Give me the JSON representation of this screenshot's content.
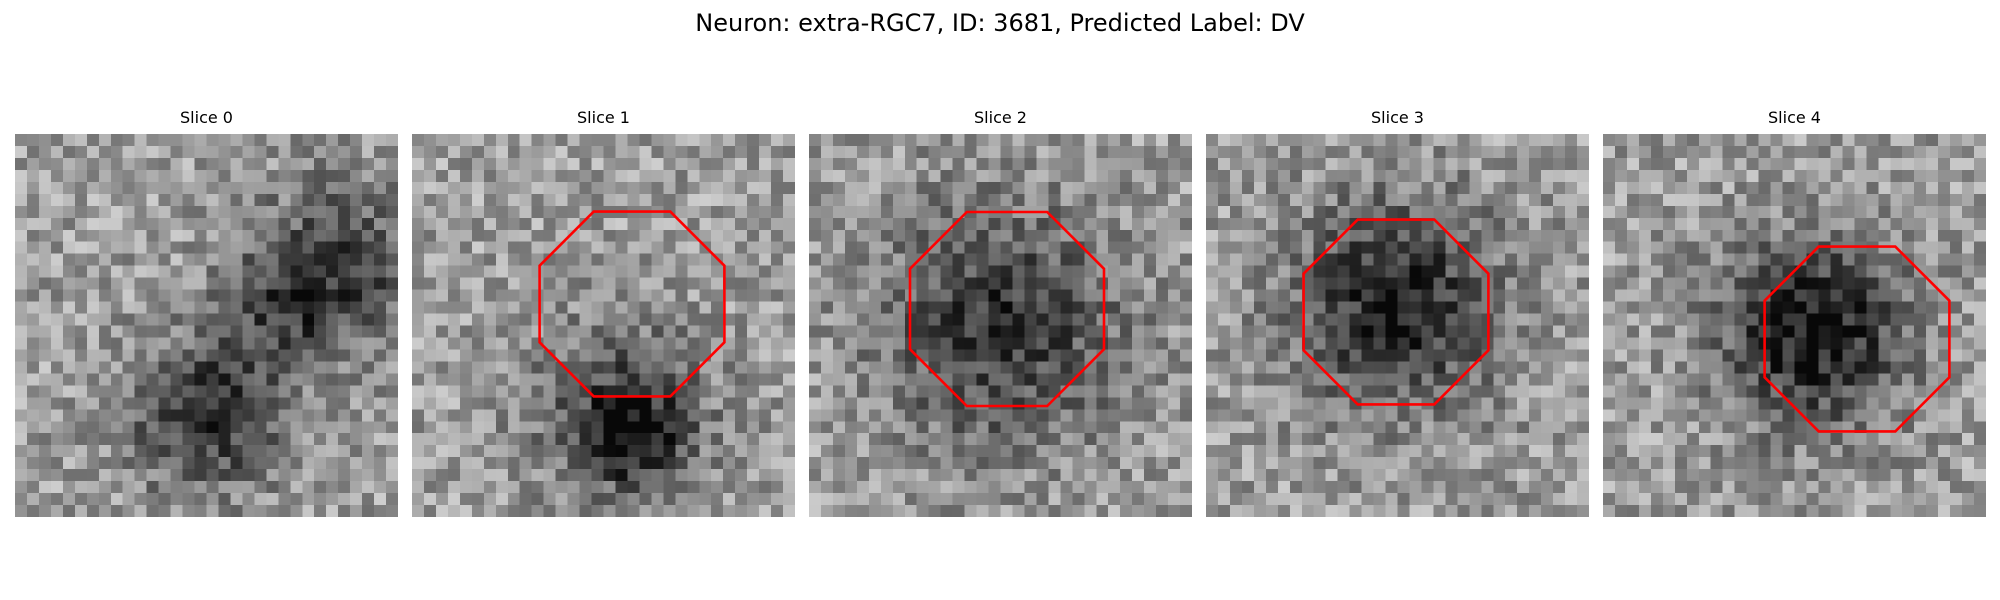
{
  "figure": {
    "title": "Neuron: extra-RGC7, ID: 3681, Predicted Label: DV"
  },
  "colors": {
    "roi_outline": "#ff0000",
    "colormap": "grayscale"
  },
  "panels": [
    {
      "title": "Slice 0",
      "has_roi": false,
      "grid_size": 32
    },
    {
      "title": "Slice 1",
      "has_roi": true,
      "grid_size": 32
    },
    {
      "title": "Slice 2",
      "has_roi": true,
      "grid_size": 32
    },
    {
      "title": "Slice 3",
      "has_roi": true,
      "grid_size": 32
    },
    {
      "title": "Slice 4",
      "has_roi": true,
      "grid_size": 32
    }
  ]
}
